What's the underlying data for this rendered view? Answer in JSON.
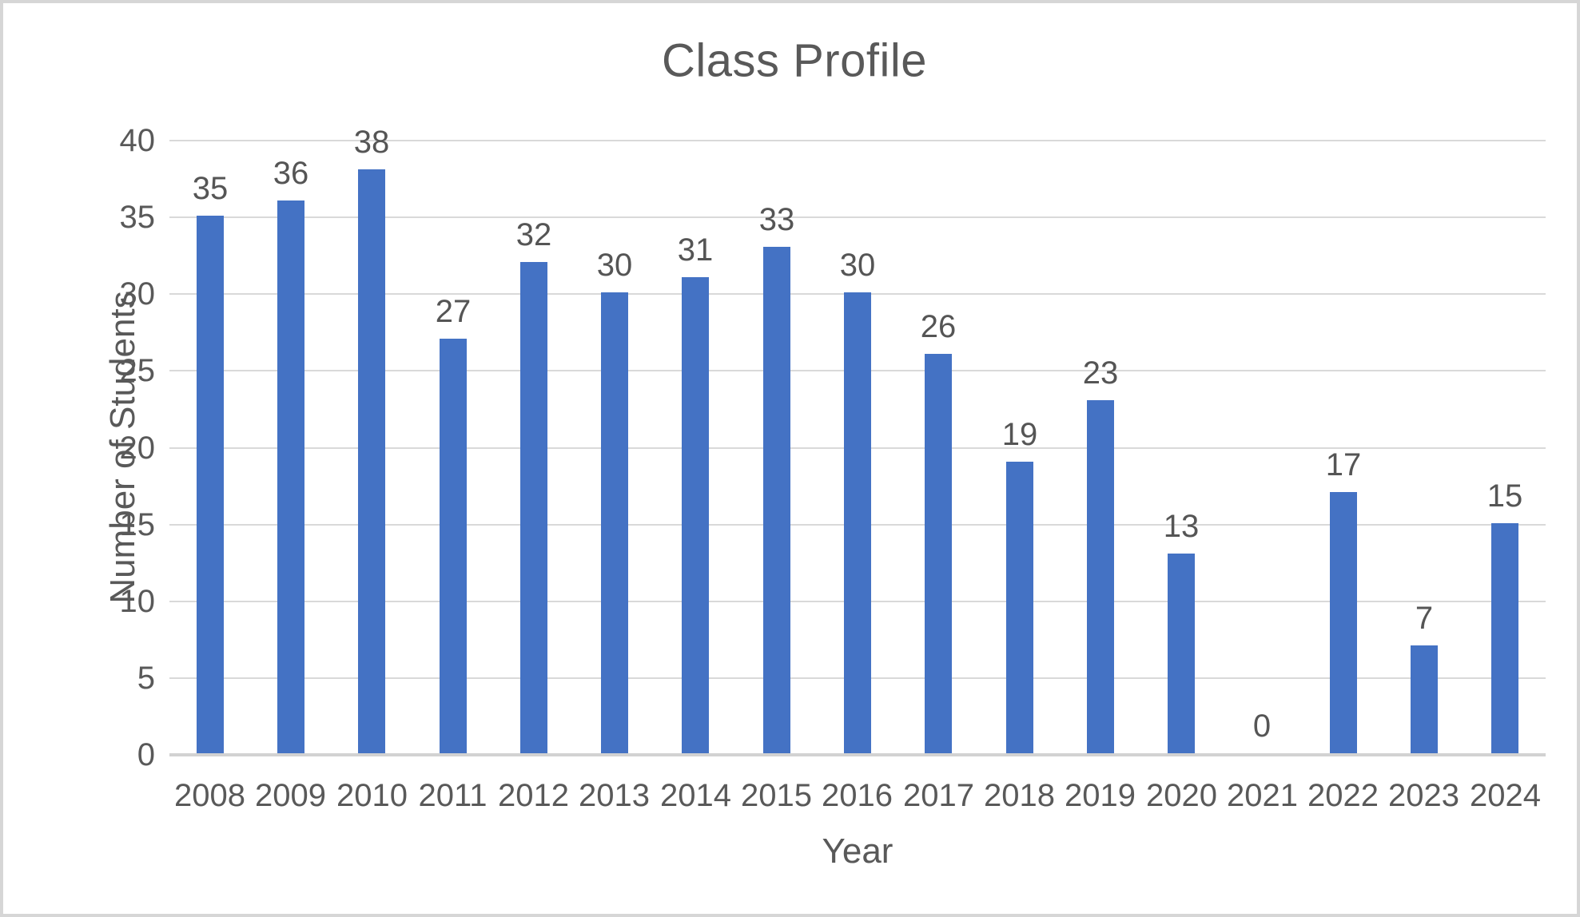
{
  "chart_data": {
    "type": "bar",
    "title": "Class Profile",
    "xlabel": "Year",
    "ylabel": "Number of Students",
    "categories": [
      "2008",
      "2009",
      "2010",
      "2011",
      "2012",
      "2013",
      "2014",
      "2015",
      "2016",
      "2017",
      "2018",
      "2019",
      "2020",
      "2021",
      "2022",
      "2023",
      "2024"
    ],
    "values": [
      35,
      36,
      38,
      27,
      32,
      30,
      31,
      33,
      30,
      26,
      19,
      23,
      13,
      0,
      17,
      7,
      15
    ],
    "ylim": [
      0,
      40
    ],
    "ytick_step": 5,
    "ytick_labels": [
      "0",
      "5",
      "10",
      "15",
      "20",
      "25",
      "30",
      "35",
      "40"
    ],
    "grid": true,
    "data_labels": true,
    "legend": "none",
    "bar_color": "#4472C4",
    "text_color": "#595959",
    "gridline_color": "#D9D9D9",
    "axisline_color": "#D2D2D2",
    "background_color": "#FFFFFF",
    "border_color": "#D6D6D6"
  }
}
